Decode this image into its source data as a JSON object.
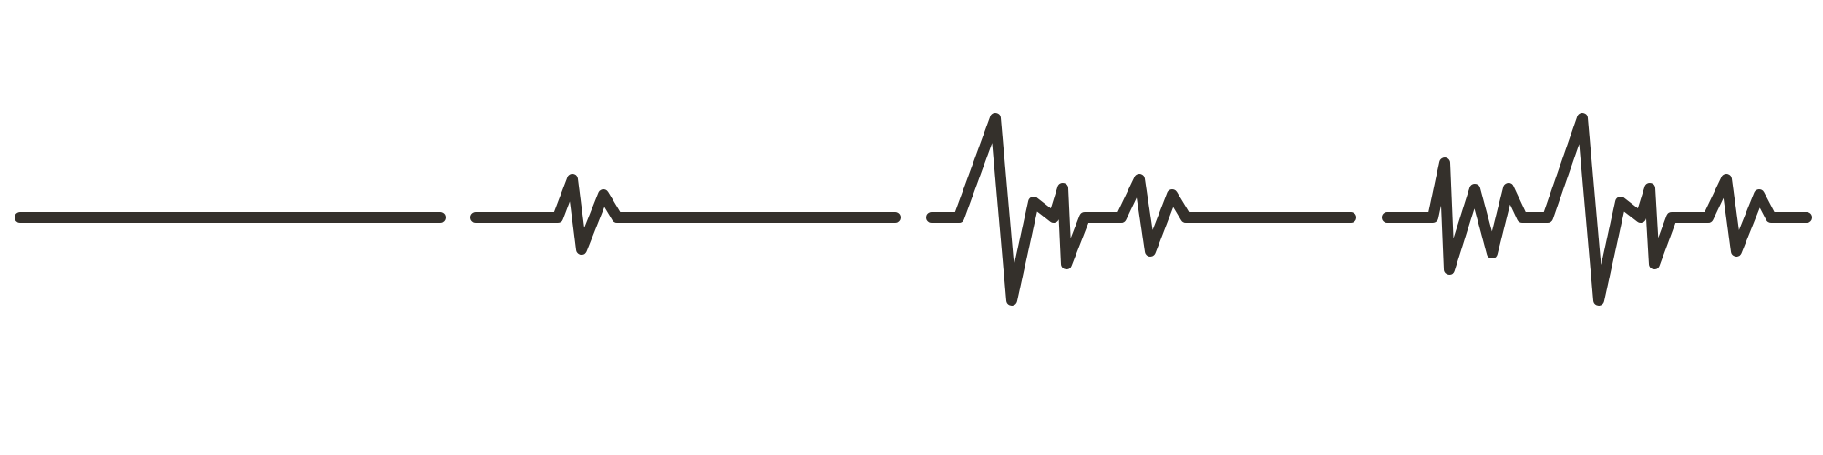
{
  "illustration": {
    "subject": "heartbeat-line-icons",
    "stroke_color": "#34302b",
    "background_color": "#ffffff",
    "icons": [
      {
        "name": "flatline"
      },
      {
        "name": "single-pulse"
      },
      {
        "name": "double-pulse"
      },
      {
        "name": "rapid-pulse"
      }
    ]
  }
}
